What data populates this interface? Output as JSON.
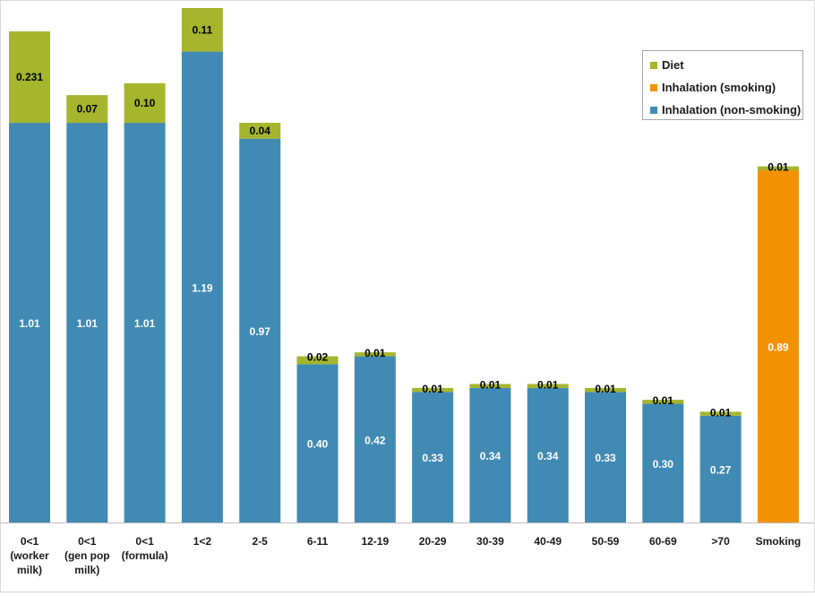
{
  "chart_data": {
    "type": "bar",
    "stacked": true,
    "categories": [
      "0<1 (worker milk)",
      "0<1 (gen pop milk)",
      "0<1 (formula)",
      "1<2",
      "2-5",
      "6-11",
      "12-19",
      "20-29",
      "30-39",
      "40-49",
      "50-59",
      "60-69",
      ">70",
      "Smoking"
    ],
    "category_lines": [
      [
        "0<1",
        "(worker",
        "milk)"
      ],
      [
        "0<1",
        "(gen pop",
        "milk)"
      ],
      [
        "0<1",
        "(formula)"
      ],
      [
        "1<2"
      ],
      [
        "2-5"
      ],
      [
        "6-11"
      ],
      [
        "12-19"
      ],
      [
        "20-29"
      ],
      [
        "30-39"
      ],
      [
        "40-49"
      ],
      [
        "50-59"
      ],
      [
        "60-69"
      ],
      [
        ">70"
      ],
      [
        "Smoking"
      ]
    ],
    "series": [
      {
        "name": "Inhalation (non-smoking)",
        "color": "#418ab3",
        "values": [
          1.01,
          1.01,
          1.01,
          1.19,
          0.97,
          0.4,
          0.42,
          0.33,
          0.34,
          0.34,
          0.33,
          0.3,
          0.27,
          0
        ],
        "labels": [
          "1.01",
          "1.01",
          "1.01",
          "1.19",
          "0.97",
          "0.40",
          "0.42",
          "0.33",
          "0.34",
          "0.34",
          "0.33",
          "0.30",
          "0.27",
          ""
        ]
      },
      {
        "name": "Inhalation (smoking)",
        "color": "#f39200",
        "values": [
          0,
          0,
          0,
          0,
          0,
          0,
          0,
          0,
          0,
          0,
          0,
          0,
          0,
          0.89
        ],
        "labels": [
          "",
          "",
          "",
          "",
          "",
          "",
          "",
          "",
          "",
          "",
          "",
          "",
          "",
          "0.89"
        ]
      },
      {
        "name": "Diet",
        "color": "#a5b52d",
        "values": [
          0.231,
          0.07,
          0.1,
          0.11,
          0.04,
          0.02,
          0.01,
          0.01,
          0.01,
          0.01,
          0.01,
          0.01,
          0.01,
          0.01
        ],
        "labels": [
          "0.231",
          "0.07",
          "0.10",
          "0.11",
          "0.04",
          "0.02",
          "0.01",
          "0.01",
          "0.01",
          "0.01",
          "0.01",
          "0.01",
          "0.01",
          "0.01"
        ]
      }
    ],
    "ylim": [
      0,
      1.3
    ],
    "legend": {
      "placement": "top-right",
      "order": [
        "Diet",
        "Inhalation (smoking)",
        "Inhalation (non-smoking)"
      ]
    },
    "grid": false
  }
}
